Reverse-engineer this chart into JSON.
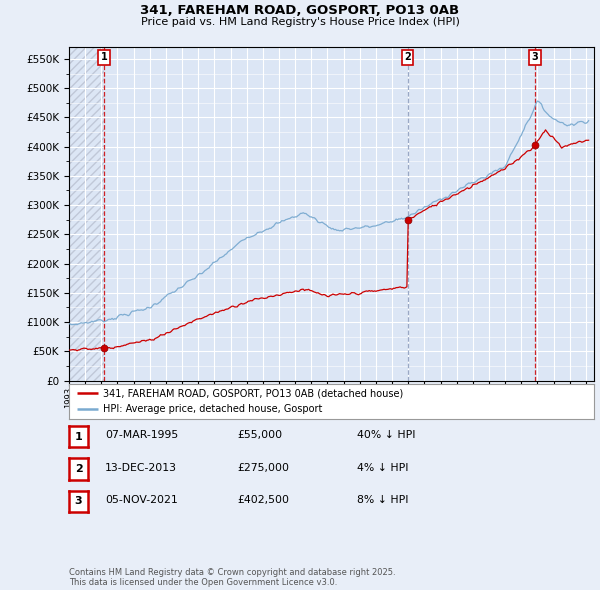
{
  "title1": "341, FAREHAM ROAD, GOSPORT, PO13 0AB",
  "title2": "Price paid vs. HM Land Registry's House Price Index (HPI)",
  "ylim": [
    0,
    570000
  ],
  "yticks": [
    0,
    50000,
    100000,
    150000,
    200000,
    250000,
    300000,
    350000,
    400000,
    450000,
    500000,
    550000
  ],
  "sale_prices": [
    55000,
    275000,
    402500
  ],
  "sale_labels": [
    "1",
    "2",
    "3"
  ],
  "sale_year_nums": [
    1995.18,
    2013.96,
    2021.84
  ],
  "vline_colors": [
    "#cc0000",
    "#8899bb",
    "#cc0000"
  ],
  "legend_house": "341, FAREHAM ROAD, GOSPORT, PO13 0AB (detached house)",
  "legend_hpi": "HPI: Average price, detached house, Gosport",
  "table_rows": [
    [
      "1",
      "07-MAR-1995",
      "£55,000",
      "40% ↓ HPI"
    ],
    [
      "2",
      "13-DEC-2013",
      "£275,000",
      "4% ↓ HPI"
    ],
    [
      "3",
      "05-NOV-2021",
      "£402,500",
      "8% ↓ HPI"
    ]
  ],
  "footnote": "Contains HM Land Registry data © Crown copyright and database right 2025.\nThis data is licensed under the Open Government Licence v3.0.",
  "house_color": "#cc0000",
  "hpi_color": "#7aaad0",
  "background_color": "#e8eef8",
  "plot_bg_color": "#dce6f5",
  "grid_color": "#ffffff",
  "hatch_color": "#c0c8d8"
}
